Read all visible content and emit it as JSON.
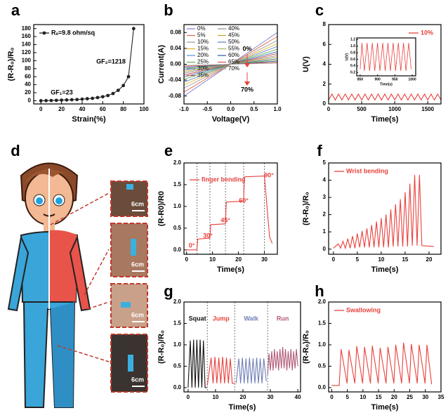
{
  "chart_data": [
    {
      "type": "line",
      "panel": "a",
      "xlabel": "Strain(%)",
      "ylabel": "(R-R₀)/R₀",
      "x": [
        0,
        5,
        10,
        15,
        20,
        25,
        30,
        35,
        40,
        45,
        50,
        55,
        60,
        65,
        70,
        75,
        80,
        85,
        90
      ],
      "series": [
        {
          "name": "Rₛ=9.8 ohm/sq",
          "color": "#222222",
          "markers": true,
          "values": [
            0,
            0.3,
            0.6,
            1,
            1.5,
            2,
            2.5,
            3,
            4,
            5,
            6,
            8,
            10,
            13,
            18,
            26,
            38,
            60,
            180
          ]
        }
      ],
      "xlim": [
        -7,
        100
      ],
      "ylim": [
        -8,
        190
      ],
      "xticks": [
        0,
        20,
        40,
        60,
        80,
        100
      ],
      "yticks": [
        0,
        20,
        40,
        60,
        80,
        100,
        120,
        140,
        160,
        180
      ],
      "annotations": [
        "GF₁=23",
        "GF₂=1218"
      ]
    },
    {
      "type": "line",
      "panel": "b",
      "xlabel": "Voltage(V)",
      "ylabel": "Current(A)",
      "x": [
        -1,
        1
      ],
      "series": [
        {
          "name": "0%",
          "color": "#7b7bd6",
          "values": [
            -0.08,
            0.08
          ]
        },
        {
          "name": "5%",
          "color": "#e0664a",
          "values": [
            -0.07,
            0.07
          ]
        },
        {
          "name": "10%",
          "color": "#9a9a9a",
          "values": [
            -0.06,
            0.06
          ]
        },
        {
          "name": "15%",
          "color": "#e6b020",
          "values": [
            -0.052,
            0.052
          ]
        },
        {
          "name": "20%",
          "color": "#5b8bd0",
          "values": [
            -0.045,
            0.045
          ]
        },
        {
          "name": "25%",
          "color": "#6ab04c",
          "values": [
            -0.038,
            0.038
          ]
        },
        {
          "name": "30%",
          "color": "#3d6fc4",
          "values": [
            -0.032,
            0.032
          ]
        },
        {
          "name": "35%",
          "color": "#c0504d",
          "values": [
            -0.027,
            0.027
          ]
        },
        {
          "name": "40%",
          "color": "#8c8c8c",
          "values": [
            -0.022,
            0.022
          ]
        },
        {
          "name": "45%",
          "color": "#c9a227",
          "values": [
            -0.018,
            0.018
          ]
        },
        {
          "name": "50%",
          "color": "#4f81bd",
          "values": [
            -0.014,
            0.014
          ]
        },
        {
          "name": "55%",
          "color": "#9bbb59",
          "values": [
            -0.011,
            0.011
          ]
        },
        {
          "name": "60%",
          "color": "#2f5597",
          "values": [
            -0.008,
            0.008
          ]
        },
        {
          "name": "65%",
          "color": "#d9534f",
          "values": [
            -0.005,
            0.005
          ]
        },
        {
          "name": "70%",
          "color": "#a5a5a5",
          "values": [
            -0.003,
            0.003
          ]
        }
      ],
      "xlim": [
        -1,
        1
      ],
      "ylim": [
        -0.1,
        0.1
      ],
      "xticks": [
        {
          "value": -1,
          "label": "-1.0"
        },
        {
          "value": -0.5,
          "label": "-0.5"
        },
        {
          "value": 0,
          "label": "0.0"
        },
        {
          "value": 0.5,
          "label": "0.5"
        },
        {
          "value": 1,
          "label": "1.0"
        }
      ],
      "yticks": [
        -0.08,
        -0.04,
        {
          "value": 0,
          "label": "0.00"
        },
        0.04,
        0.08
      ],
      "annotations": [
        "0%",
        "70%"
      ]
    },
    {
      "type": "line",
      "panel": "c",
      "xlabel": "Time(s)",
      "ylabel": "U(V)",
      "x": [
        0,
        50,
        100,
        150,
        200,
        250,
        300,
        350,
        400,
        450,
        500,
        550,
        600,
        650,
        700,
        750,
        800,
        850,
        900,
        950,
        1000,
        1050,
        1100,
        1150,
        1200,
        1250,
        1300,
        1350,
        1400,
        1450,
        1500,
        1550,
        1600,
        1650,
        1700
      ],
      "series": [
        {
          "name": "10%",
          "color": "#e8413c",
          "values": [
            0.4,
            1.0,
            0.4,
            1.0,
            0.4,
            1.0,
            0.4,
            1.0,
            0.4,
            1.0,
            0.4,
            1.0,
            0.4,
            1.0,
            0.4,
            1.0,
            0.4,
            1.0,
            0.4,
            1.0,
            0.4,
            1.0,
            0.4,
            1.0,
            0.4,
            1.0,
            0.4,
            1.0,
            0.4,
            1.0,
            0.4,
            1.0,
            0.4,
            1.0,
            0.4
          ]
        }
      ],
      "xlim": [
        0,
        1700
      ],
      "ylim": [
        0,
        8
      ],
      "xticks": [
        0,
        500,
        1000,
        1500
      ],
      "yticks": [
        0,
        2,
        4,
        6,
        8
      ]
    },
    {
      "type": "line",
      "inset": true,
      "xlabel": "Time(s)",
      "ylabel": "U(V)",
      "x": [
        850,
        855,
        862,
        870,
        877,
        885,
        892,
        900,
        907,
        915,
        922,
        930,
        937,
        945,
        952,
        960,
        967,
        975,
        982,
        990,
        997
      ],
      "series": [
        {
          "color": "#e8413c",
          "values": [
            0.3,
            1.1,
            0.25,
            1.1,
            0.25,
            1.1,
            0.25,
            1.1,
            0.25,
            1.1,
            0.25,
            1.1,
            0.25,
            1.1,
            0.25,
            1.1,
            0.25,
            1.1,
            0.25,
            1.1,
            0.3
          ]
        }
      ],
      "xlim": [
        840,
        1010
      ],
      "ylim": [
        0.1,
        1.25
      ],
      "xticks": [
        850,
        900,
        950,
        1000
      ],
      "yticks": [
        0.2,
        0.4,
        0.6,
        0.8,
        {
          "value": 1,
          "label": "1.0"
        },
        1.2
      ]
    },
    {
      "type": "line",
      "panel": "e",
      "xlabel": "Time(s)",
      "ylabel": "(R-R0)/R0",
      "x": [
        0,
        4,
        4.3,
        9,
        9.3,
        15,
        15.3,
        22,
        22.3,
        30,
        31,
        32,
        33
      ],
      "series": [
        {
          "name": "finger bending",
          "color": "#e8413c",
          "values": [
            0,
            0,
            0.25,
            0.27,
            0.58,
            0.6,
            1.1,
            1.12,
            1.68,
            1.7,
            1.0,
            0.3,
            0.15
          ]
        }
      ],
      "vlines": [
        4,
        9,
        15,
        22,
        30
      ],
      "xlim": [
        -1,
        35
      ],
      "ylim": [
        -0.1,
        2.0
      ],
      "xticks": [
        0,
        10,
        20,
        30
      ],
      "yticks": [
        {
          "value": 0,
          "label": "0.0"
        },
        0.5,
        {
          "value": 1,
          "label": "1.0"
        },
        1.5,
        {
          "value": 2,
          "label": "2.0"
        }
      ],
      "annotations": [
        "0°",
        "30°",
        "45°",
        "60°",
        "90°"
      ]
    },
    {
      "type": "line",
      "panel": "f",
      "xlabel": "Time(s)",
      "ylabel": "(R-R₀)/R₀",
      "x": [
        0,
        1,
        1.5,
        2,
        2.5,
        3,
        3.5,
        4,
        4.5,
        5,
        5.5,
        6,
        6.5,
        7,
        7.5,
        8,
        8.5,
        9,
        9.5,
        10,
        10.5,
        11,
        11.5,
        12,
        12.5,
        13,
        13.5,
        14,
        14.5,
        15,
        15.5,
        16,
        16.5,
        17,
        17.5,
        18,
        18.5,
        21
      ],
      "series": [
        {
          "name": "Wrist bending",
          "color": "#e8413c",
          "values": [
            0.05,
            0.3,
            0.05,
            0.45,
            0.05,
            0.6,
            0.05,
            0.75,
            0.05,
            0.9,
            0.1,
            1.05,
            0.1,
            1.2,
            0.1,
            1.4,
            0.1,
            1.6,
            0.1,
            1.8,
            0.1,
            2.0,
            0.1,
            2.3,
            0.15,
            2.6,
            0.15,
            2.9,
            0.15,
            3.3,
            0.15,
            3.8,
            0.2,
            4.3,
            0.2,
            4.3,
            0.2,
            0.15
          ]
        }
      ],
      "xlim": [
        -1,
        22.5
      ],
      "ylim": [
        -0.3,
        5
      ],
      "xticks": [
        0,
        5,
        10,
        15,
        20
      ],
      "yticks": [
        0,
        1,
        2,
        3,
        4,
        5
      ]
    },
    {
      "type": "line",
      "panel": "g",
      "xlabel": "Time(s)",
      "ylabel": "(R-R₀)/R₀",
      "series": [
        {
          "name": "Squat",
          "color": "#111111",
          "x": [
            0,
            0.8,
            1.4,
            2,
            2.6,
            3.2,
            3.8,
            4.4,
            5,
            5.6,
            6.2,
            6.8
          ],
          "values": [
            0,
            1.1,
            0,
            1.12,
            0,
            1.12,
            0,
            1.12,
            0,
            1.1,
            0,
            0
          ]
        },
        {
          "name": "Jump",
          "color": "#e8413c",
          "x": [
            7,
            8.4,
            9.1,
            9.8,
            10.5,
            11.2,
            11.9,
            12.6,
            13.3,
            14,
            14.7,
            15.4,
            16.1,
            17
          ],
          "values": [
            0.05,
            0.7,
            0.1,
            0.72,
            0.1,
            0.7,
            0.1,
            0.72,
            0.1,
            0.7,
            0.1,
            0.68,
            0.1,
            0.1
          ]
        },
        {
          "name": "Walk",
          "color": "#6f7fb4",
          "x": [
            17.5,
            18.5,
            19.15,
            19.8,
            20.45,
            21.1,
            21.75,
            22.4,
            23.05,
            23.7,
            24.35,
            25,
            25.65,
            26.3,
            26.95,
            27.6,
            28.5
          ],
          "values": [
            0.1,
            0.68,
            0.1,
            0.7,
            0.1,
            0.68,
            0.1,
            0.7,
            0.1,
            0.68,
            0.1,
            0.7,
            0.1,
            0.68,
            0.1,
            0.68,
            0.15
          ]
        },
        {
          "name": "Run",
          "color": "#b05a78",
          "x": [
            29,
            29.5,
            30,
            30.5,
            31,
            31.5,
            32,
            32.5,
            33,
            33.5,
            34,
            34.5,
            35,
            35.5,
            36,
            36.5,
            37,
            37.5,
            38,
            38.5,
            39,
            39.5,
            40
          ],
          "values": [
            0.3,
            0.8,
            0.4,
            0.85,
            0.4,
            0.9,
            0.45,
            0.85,
            0.4,
            0.9,
            0.45,
            0.95,
            0.45,
            0.9,
            0.4,
            0.85,
            0.45,
            0.9,
            0.4,
            0.85,
            0.45,
            0.9,
            0.5
          ]
        }
      ],
      "vlines": [
        7,
        17,
        29
      ],
      "xlim": [
        -1.5,
        41
      ],
      "ylim": [
        -0.1,
        2.0
      ],
      "xticks": [
        0,
        10,
        20,
        30,
        40
      ],
      "yticks": [
        {
          "value": 0,
          "label": "0.0"
        },
        0.5,
        {
          "value": 1,
          "label": "1.0"
        },
        1.5,
        {
          "value": 2,
          "label": "2.0"
        }
      ]
    },
    {
      "type": "line",
      "panel": "h",
      "xlabel": "Time(s)",
      "ylabel": "(R-R₀)/R₀",
      "x": [
        0,
        2.4,
        3,
        4.9,
        5.5,
        7.4,
        8,
        9.9,
        10.5,
        12.4,
        13,
        14.9,
        15.5,
        17.4,
        18,
        19.9,
        20.5,
        22.4,
        23,
        24.9,
        25.5,
        27.4,
        28,
        29.9,
        30.5,
        32
      ],
      "series": [
        {
          "name": "Swallowing",
          "color": "#e8413c",
          "values": [
            0.05,
            0.05,
            0.9,
            0.1,
            0.88,
            0.1,
            0.97,
            0.1,
            0.95,
            0.1,
            0.98,
            0.1,
            0.93,
            0.1,
            0.95,
            0.1,
            1.0,
            0.1,
            1.05,
            0.1,
            1.02,
            0.1,
            1.0,
            0.1,
            1.0,
            0.08
          ]
        }
      ],
      "xlim": [
        -1,
        35
      ],
      "ylim": [
        -0.1,
        2.0
      ],
      "xticks": [
        0,
        5,
        10,
        15,
        20,
        25,
        30,
        35
      ],
      "yticks": [
        {
          "value": 0,
          "label": "0.0"
        },
        0.5,
        {
          "value": 1,
          "label": "1.0"
        },
        1.5,
        {
          "value": 2,
          "label": "2.0"
        }
      ]
    }
  ],
  "illustration": {
    "panel": "d",
    "scale_labels": [
      "6cm",
      "6cm",
      "6cm",
      "6cm"
    ]
  }
}
